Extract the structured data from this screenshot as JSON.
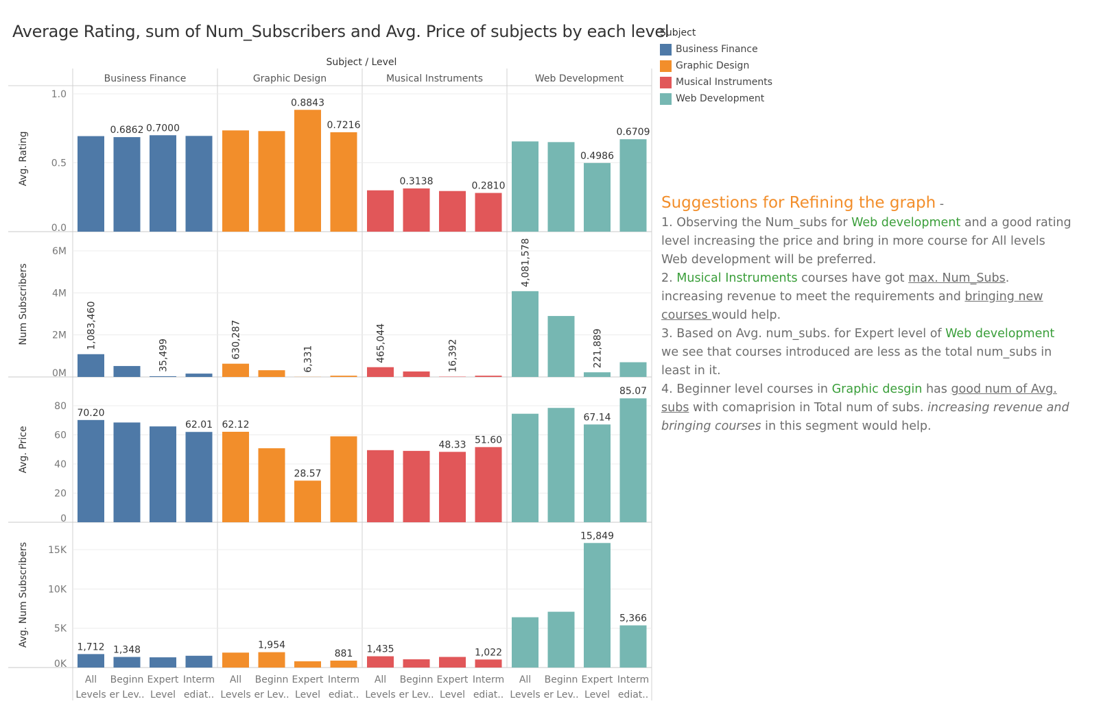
{
  "title": "Average Rating, sum of Num_Subscribers and Avg. Price of subjects by each level",
  "header_label": "Subject  /  Level",
  "legend": {
    "title": "Subject",
    "items": [
      {
        "label": "Business Finance",
        "color": "#4e79a7"
      },
      {
        "label": "Graphic Design",
        "color": "#f28e2b"
      },
      {
        "label": "Musical Instruments",
        "color": "#e15759"
      },
      {
        "label": "Web Development",
        "color": "#76b7b2"
      }
    ]
  },
  "notes": {
    "heading": "Suggestions for Refining the graph",
    "heading_suffix": " -",
    "p1": {
      "a": "1. Observing the Num_subs for ",
      "g1": "Web development",
      "b": " and a good rating level increasing the price and bring in more course for All levels Web development will be preferred."
    },
    "p2": {
      "a": "2. ",
      "g1": "Musical Instruments",
      "b": " courses have got ",
      "u1": "max. Num_Subs",
      "c": ". increasing revenue to meet the requirements and ",
      "u2": "bringing new courses ",
      "d": "would help."
    },
    "p3": {
      "a": "3. Based on Avg. num_subs. for Expert level of ",
      "g1": "Web development",
      "b": " we see that courses introduced are less as the total num_subs in least in it."
    },
    "p4": {
      "a": "4. Beginner level courses in ",
      "g1": "Graphic desgin",
      "b": " has ",
      "u1": "good num of Avg. subs",
      "c": " with comaprision in Total num of subs. ",
      "i1": "increasing revenue and bringing courses ",
      "d": " in this segment would help."
    }
  },
  "chart_data": {
    "type": "bar",
    "subjects": [
      "Business Finance",
      "Graphic Design",
      "Musical Instruments",
      "Web Development"
    ],
    "levels": [
      [
        "All",
        "Levels"
      ],
      [
        "Beginn",
        "er Lev.."
      ],
      [
        "Expert",
        "Level"
      ],
      [
        "Interm",
        "ediat.."
      ]
    ],
    "colors": [
      "#4e79a7",
      "#f28e2b",
      "#e15759",
      "#76b7b2"
    ],
    "rows": [
      {
        "measure": "Avg. Rating",
        "ylabel": "Avg. Rating",
        "ylim": [
          0,
          1.0
        ],
        "ticks": [
          {
            "v": 0,
            "t": "0.0"
          },
          {
            "v": 0.5,
            "t": "0.5"
          },
          {
            "v": 1.0,
            "t": "1.0"
          }
        ],
        "values": [
          [
            0.6935,
            0.6862,
            0.7,
            0.695
          ],
          [
            0.735,
            0.73,
            0.8843,
            0.7216
          ],
          [
            0.3,
            0.3138,
            0.295,
            0.281
          ],
          [
            0.655,
            0.65,
            0.4986,
            0.6709
          ]
        ],
        "labels": [
          [
            "",
            "0.6862",
            "0.7000",
            ""
          ],
          [
            "",
            "",
            "0.8843",
            "0.7216"
          ],
          [
            "",
            "0.3138",
            "",
            "0.2810"
          ],
          [
            "",
            "",
            "0.4986",
            "0.6709"
          ]
        ],
        "rotated_labels": false
      },
      {
        "measure": "Num Subscribers",
        "ylabel": "Num Subscribers",
        "ylim": [
          0,
          6800000
        ],
        "ticks": [
          {
            "v": 0,
            "t": "0M"
          },
          {
            "v": 2000000,
            "t": "2M"
          },
          {
            "v": 4000000,
            "t": "4M"
          },
          {
            "v": 6000000,
            "t": "6M"
          }
        ],
        "values": [
          [
            1083460,
            520000,
            35499,
            160000
          ],
          [
            630287,
            320000,
            6331,
            60000
          ],
          [
            465044,
            260000,
            16392,
            60000
          ],
          [
            4081578,
            2900000,
            221889,
            700000
          ]
        ],
        "labels": [
          [
            "1,083,460",
            "",
            "35,499",
            ""
          ],
          [
            "630,287",
            "",
            "6,331",
            ""
          ],
          [
            "465,044",
            "",
            "16,392",
            ""
          ],
          [
            "4,081,578",
            "",
            "221,889",
            ""
          ]
        ],
        "rotated_labels": true
      },
      {
        "measure": "Avg. Price",
        "ylabel": "Avg. Price",
        "ylim": [
          0,
          91
        ],
        "ticks": [
          {
            "v": 0,
            "t": "0"
          },
          {
            "v": 20,
            "t": "20"
          },
          {
            "v": 40,
            "t": "40"
          },
          {
            "v": 60,
            "t": "60"
          },
          {
            "v": 80,
            "t": "80"
          }
        ],
        "values": [
          [
            70.2,
            68.5,
            65.8,
            62.01
          ],
          [
            62.12,
            50.8,
            28.57,
            59.0
          ],
          [
            49.5,
            49.0,
            48.33,
            51.6
          ],
          [
            74.5,
            78.5,
            67.14,
            85.07
          ]
        ],
        "labels": [
          [
            "70.20",
            "",
            "",
            "62.01"
          ],
          [
            "62.12",
            "",
            "28.57",
            ""
          ],
          [
            "",
            "",
            "48.33",
            "51.60"
          ],
          [
            "",
            "",
            "67.14",
            "85.07"
          ]
        ],
        "rotated_labels": false
      },
      {
        "measure": "Avg. Num Subscribers",
        "ylabel": "Avg. Num Subscribers",
        "ylim": [
          0,
          17000
        ],
        "ticks": [
          {
            "v": 0,
            "t": "0K"
          },
          {
            "v": 5000,
            "t": "5K"
          },
          {
            "v": 10000,
            "t": "10K"
          },
          {
            "v": 15000,
            "t": "15K"
          }
        ],
        "values": [
          [
            1712,
            1348,
            1300,
            1500
          ],
          [
            1900,
            1954,
            800,
            881
          ],
          [
            1435,
            1050,
            1350,
            1022
          ],
          [
            6400,
            7100,
            15849,
            5366
          ]
        ],
        "labels": [
          [
            "1,712",
            "1,348",
            "",
            ""
          ],
          [
            "",
            "1,954",
            "",
            "881"
          ],
          [
            "1,435",
            "",
            "",
            "1,022"
          ],
          [
            "",
            "",
            "15,849",
            "5,366"
          ]
        ],
        "rotated_labels": false
      }
    ]
  }
}
